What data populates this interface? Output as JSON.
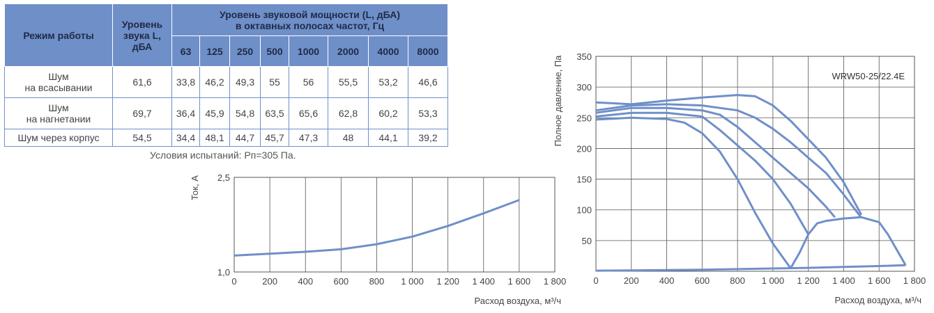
{
  "table": {
    "mode_header": "Режим работы",
    "level_header": [
      "Уровень",
      "звука L,",
      "дБА"
    ],
    "octave_header": [
      "Уровень звуковой мощности (L, дБА)",
      "в октавных полосах частот, Гц"
    ],
    "frequencies": [
      "63",
      "125",
      "250",
      "500",
      "1000",
      "2000",
      "4000",
      "8000"
    ],
    "rows": [
      {
        "mode": [
          "Шум",
          "на всасывании"
        ],
        "level": "61,6",
        "values": [
          "33,8",
          "46,2",
          "49,3",
          "55",
          "56",
          "55,5",
          "53,2",
          "46,6"
        ]
      },
      {
        "mode": [
          "Шум",
          "на нагнетании"
        ],
        "level": "69,7",
        "values": [
          "36,4",
          "45,9",
          "54,8",
          "63,5",
          "65,6",
          "62,8",
          "60,2",
          "53,3"
        ]
      },
      {
        "mode": [
          "Шум через корпус"
        ],
        "level": "54,5",
        "values": [
          "34,4",
          "48,1",
          "44,7",
          "45,7",
          "47,3",
          "48",
          "44,1",
          "39,2"
        ]
      }
    ],
    "conditions": "Условия испытаний: Рп=305 Па."
  },
  "chart_data": [
    {
      "type": "line",
      "title": "",
      "xlabel": "Расход воздуха, м³/ч",
      "ylabel": "Ток, А",
      "xlim": [
        0,
        1800
      ],
      "ylim": [
        1.0,
        2.5
      ],
      "x_ticks": [
        "0",
        "200",
        "400",
        "600",
        "800",
        "1 000",
        "1 200",
        "1 400",
        "1 600",
        "1 800"
      ],
      "y_ticks": [
        "1,0",
        "2,5"
      ],
      "grid": true,
      "series": [
        {
          "x": [
            0,
            200,
            400,
            600,
            800,
            1000,
            1200,
            1400,
            1600
          ],
          "y": [
            1.26,
            1.29,
            1.32,
            1.36,
            1.44,
            1.56,
            1.73,
            1.93,
            2.14
          ]
        }
      ],
      "color": "#6f8fc9"
    },
    {
      "type": "line",
      "title": "",
      "annotation": "WRW50-25/22.4E",
      "xlabel": "Расход воздуха, м³/ч",
      "ylabel": "Полное давление, Па",
      "xlim": [
        0,
        1800
      ],
      "ylim": [
        0,
        350
      ],
      "x_ticks": [
        "0",
        "200",
        "400",
        "600",
        "800",
        "1 000",
        "1 200",
        "1 400",
        "1 600",
        "1 800"
      ],
      "y_ticks": [
        "50",
        "100",
        "150",
        "200",
        "250",
        "300",
        "350"
      ],
      "grid": true,
      "series": [
        {
          "x": [
            0,
            200,
            400,
            500,
            600,
            700,
            800,
            900,
            1000,
            1100
          ],
          "y": [
            247,
            250,
            248,
            242,
            225,
            195,
            150,
            95,
            45,
            5
          ]
        },
        {
          "x": [
            0,
            200,
            400,
            600,
            700,
            800,
            900,
            1000,
            1100,
            1200
          ],
          "y": [
            252,
            258,
            258,
            252,
            230,
            205,
            180,
            150,
            110,
            60
          ]
        },
        {
          "x": [
            0,
            200,
            400,
            600,
            700,
            800,
            900,
            1000,
            1100,
            1200,
            1300,
            1350
          ],
          "y": [
            258,
            266,
            266,
            262,
            255,
            235,
            210,
            185,
            160,
            135,
            105,
            88
          ]
        },
        {
          "x": [
            0,
            200,
            400,
            600,
            700,
            800,
            900,
            1000,
            1100,
            1200,
            1300,
            1400,
            1500
          ],
          "y": [
            262,
            270,
            272,
            270,
            266,
            262,
            250,
            232,
            210,
            185,
            160,
            125,
            87
          ]
        },
        {
          "x": [
            0,
            200,
            400,
            600,
            800,
            900,
            1000,
            1100,
            1200,
            1300,
            1400,
            1500
          ],
          "y": [
            275,
            272,
            278,
            283,
            287,
            285,
            270,
            245,
            215,
            185,
            145,
            92
          ]
        },
        {
          "x": [
            1100,
            1150,
            1200,
            1250,
            1300,
            1400,
            1500,
            1600,
            1650,
            1700,
            1750
          ],
          "y": [
            5,
            30,
            60,
            78,
            82,
            86,
            88,
            80,
            60,
            35,
            10
          ]
        },
        {
          "x": [
            0,
            200,
            400,
            600,
            800,
            1000,
            1200,
            1400,
            1600,
            1750
          ],
          "y": [
            1,
            1.5,
            2,
            2.5,
            3.5,
            4.5,
            5.5,
            7,
            8.5,
            10
          ]
        }
      ],
      "color": "#6f8fc9"
    }
  ]
}
